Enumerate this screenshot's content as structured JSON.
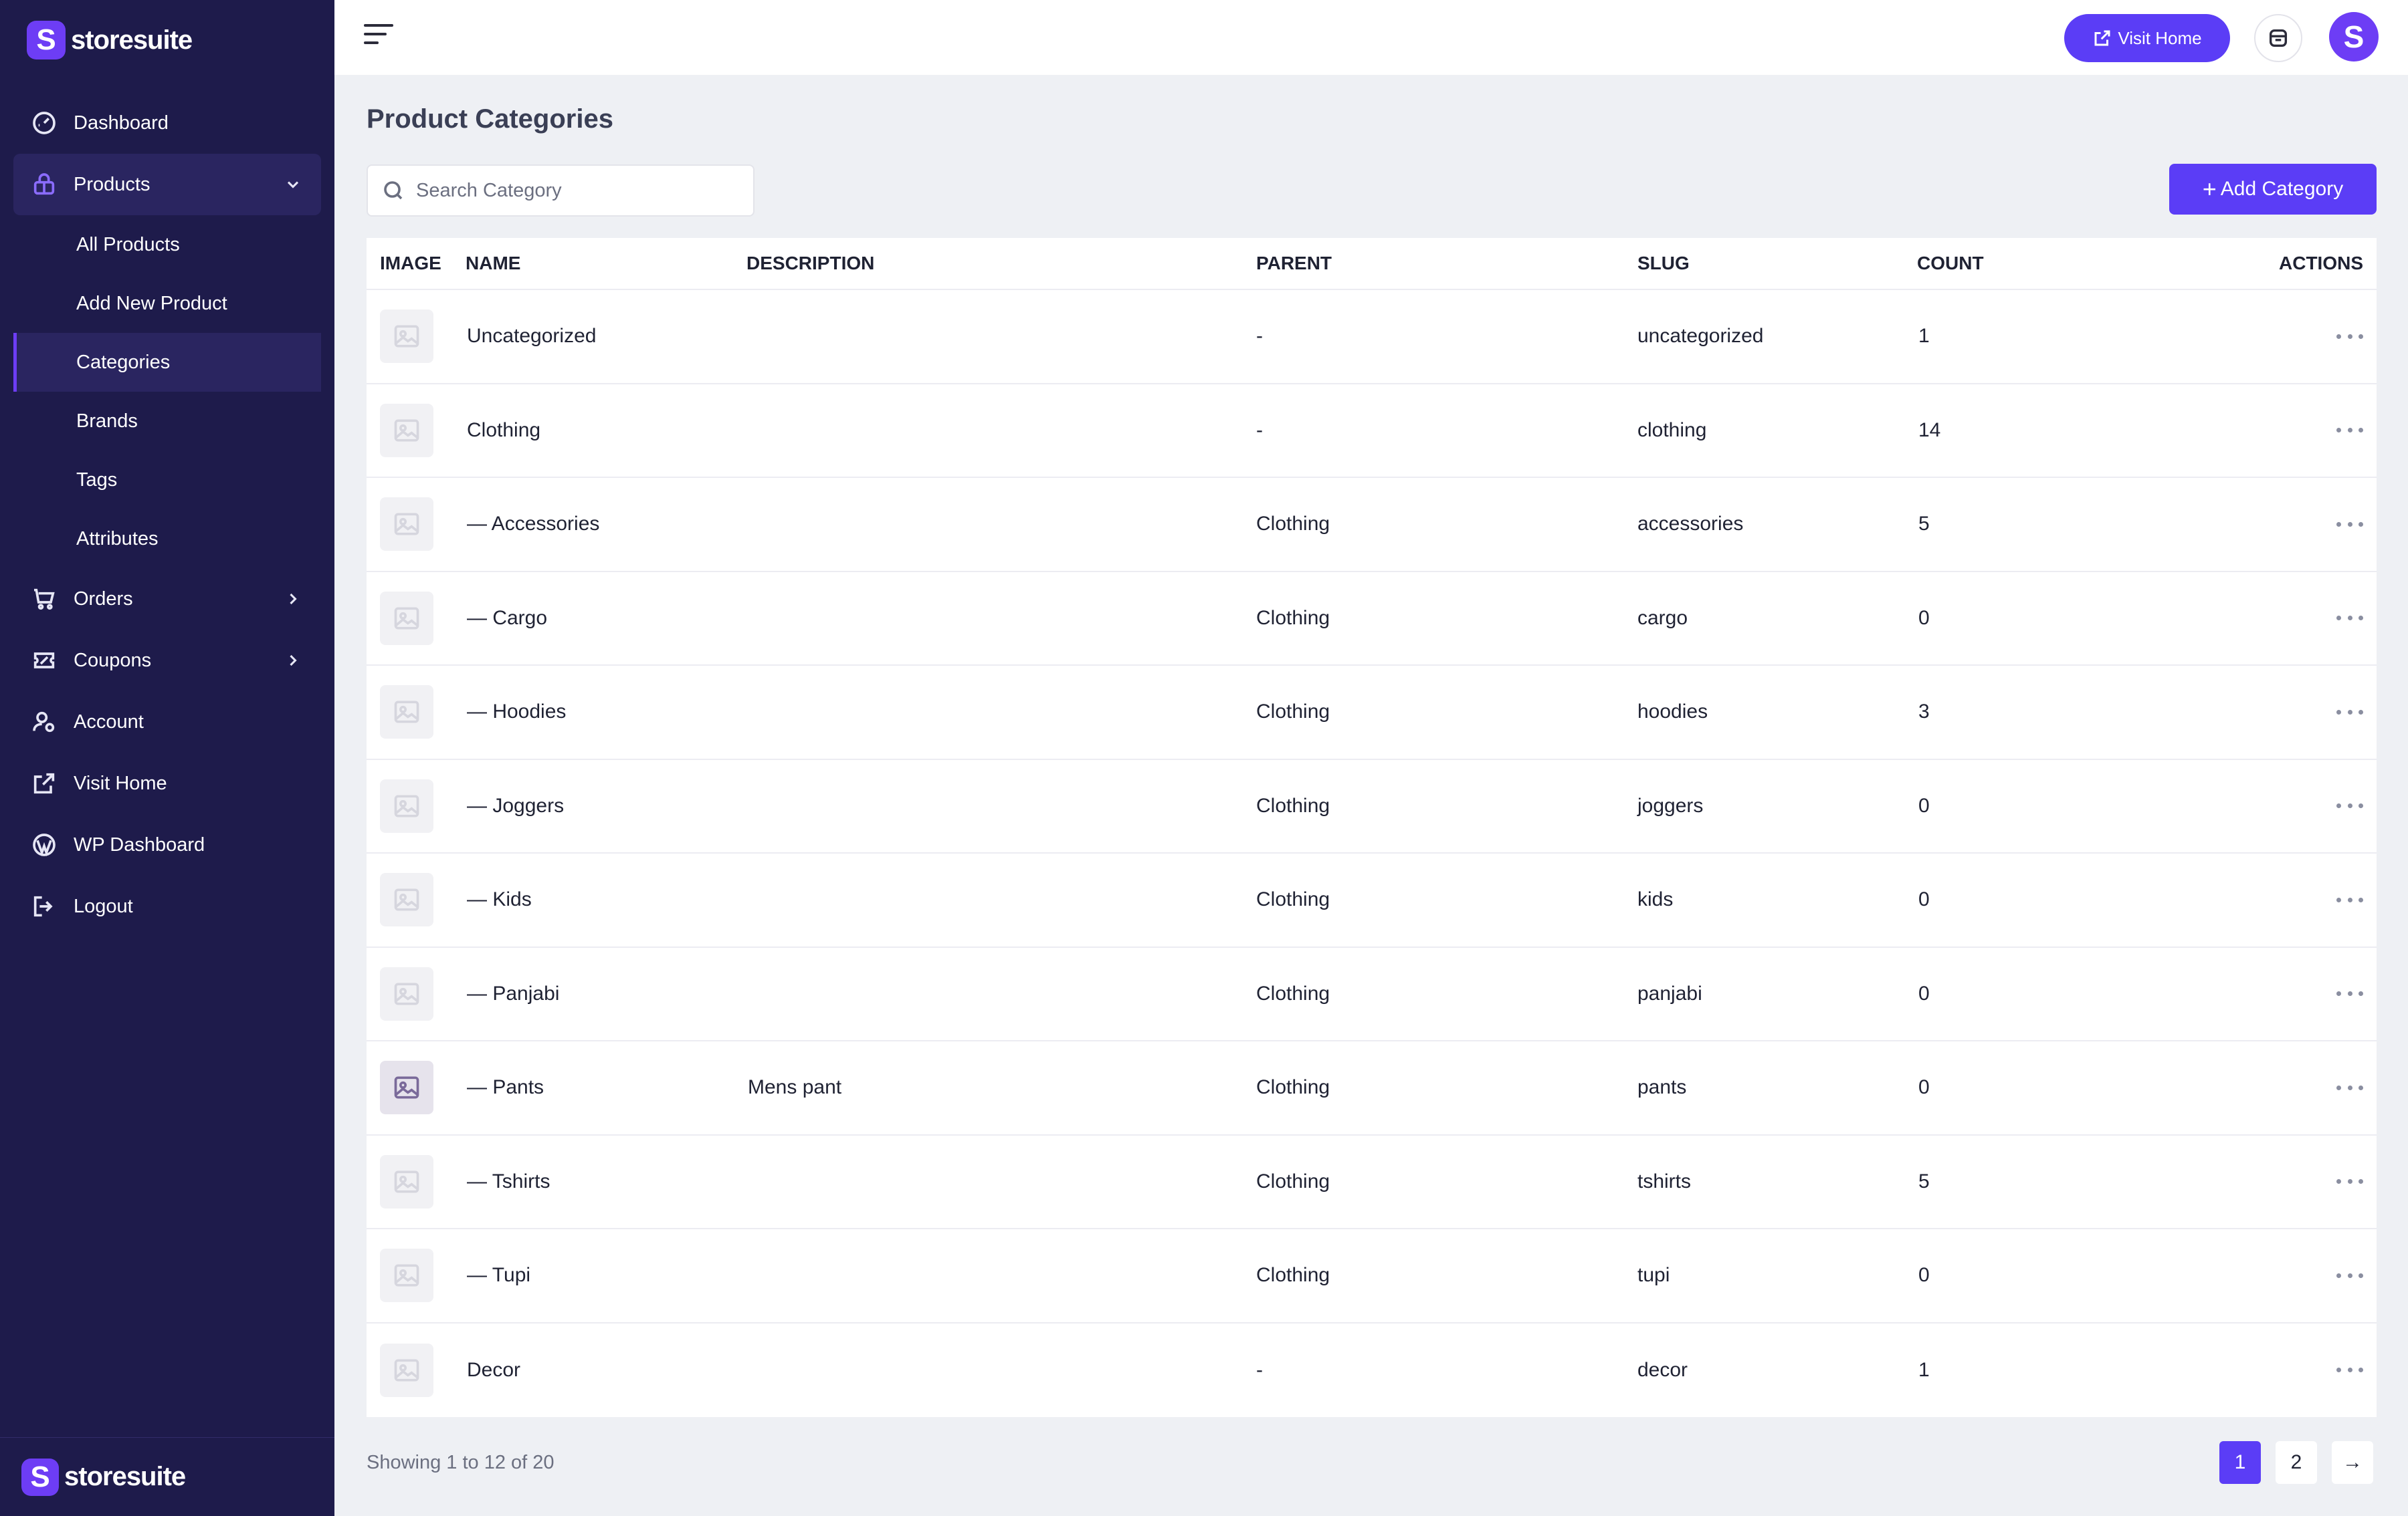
{
  "brand": {
    "name": "storesuite",
    "logo_letter": "S",
    "color": "#6d3df5"
  },
  "sidebar": {
    "items": [
      {
        "label": "Dashboard",
        "icon": "gauge-icon"
      },
      {
        "label": "Products",
        "icon": "box-icon"
      },
      {
        "label": "Orders",
        "icon": "cart-icon"
      },
      {
        "label": "Coupons",
        "icon": "ticket-icon"
      },
      {
        "label": "Account",
        "icon": "user-gear-icon"
      },
      {
        "label": "Visit Home",
        "icon": "external-link-icon"
      },
      {
        "label": "WP Dashboard",
        "icon": "wordpress-icon"
      },
      {
        "label": "Logout",
        "icon": "logout-icon"
      }
    ],
    "products_sub": [
      "All Products",
      "Add New Product",
      "Categories",
      "Brands",
      "Tags",
      "Attributes"
    ]
  },
  "topbar": {
    "visit_home_label": "Visit Home"
  },
  "page": {
    "title": "Product Categories"
  },
  "search": {
    "placeholder": "Search Category"
  },
  "add_category_label": "Add Category",
  "table": {
    "headers": [
      "IMAGE",
      "NAME",
      "DESCRIPTION",
      "PARENT",
      "SLUG",
      "COUNT",
      "ACTIONS"
    ],
    "rows": [
      {
        "name": "Uncategorized",
        "description": "",
        "parent": "-",
        "slug": "uncategorized",
        "count": "1"
      },
      {
        "name": "Clothing",
        "description": "",
        "parent": "-",
        "slug": "clothing",
        "count": "14"
      },
      {
        "name": "— Accessories",
        "description": "",
        "parent": "Clothing",
        "slug": "accessories",
        "count": "5"
      },
      {
        "name": "— Cargo",
        "description": "",
        "parent": "Clothing",
        "slug": "cargo",
        "count": "0"
      },
      {
        "name": "— Hoodies",
        "description": "",
        "parent": "Clothing",
        "slug": "hoodies",
        "count": "3"
      },
      {
        "name": "— Joggers",
        "description": "",
        "parent": "Clothing",
        "slug": "joggers",
        "count": "0"
      },
      {
        "name": "— Kids",
        "description": "",
        "parent": "Clothing",
        "slug": "kids",
        "count": "0"
      },
      {
        "name": "— Panjabi",
        "description": "",
        "parent": "Clothing",
        "slug": "panjabi",
        "count": "0"
      },
      {
        "name": "— Pants",
        "description": "Mens pant",
        "parent": "Clothing",
        "slug": "pants",
        "count": "0"
      },
      {
        "name": "— Tshirts",
        "description": "",
        "parent": "Clothing",
        "slug": "tshirts",
        "count": "5"
      },
      {
        "name": "— Tupi",
        "description": "",
        "parent": "Clothing",
        "slug": "tupi",
        "count": "0"
      },
      {
        "name": "Decor",
        "description": "",
        "parent": "-",
        "slug": "decor",
        "count": "1"
      }
    ]
  },
  "footer": {
    "showing": "Showing 1 to 12 of 20",
    "pages": [
      "1",
      "2"
    ],
    "next": "→",
    "current_page": "1"
  },
  "colors": {
    "sidebar_bg": "#1e1b4b",
    "accent": "#5b3df6",
    "page_bg": "#eef0f4"
  }
}
